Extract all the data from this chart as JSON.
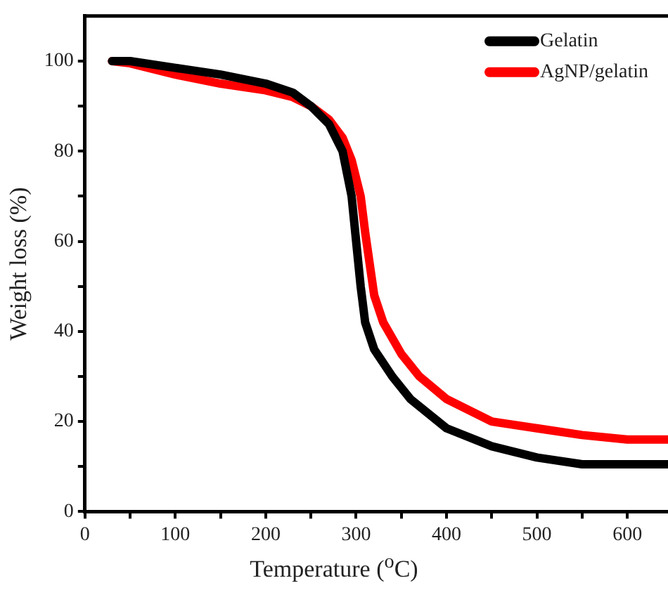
{
  "chart_data": {
    "type": "line",
    "xlabel": "Temperature ($^{o}$C)",
    "ylabel": "Weight loss (%)",
    "xlim": [
      0,
      645
    ],
    "xticks": [
      0,
      {
        "value": 50,
        "label": null
      },
      100,
      {
        "value": 150,
        "label": null
      },
      200,
      {
        "value": 250,
        "label": null
      },
      300,
      {
        "value": 350,
        "label": null
      },
      400,
      {
        "value": 450,
        "label": null
      },
      500,
      {
        "value": 550,
        "label": null
      },
      600
    ],
    "ylim": [
      0,
      110
    ],
    "yticks": [
      0,
      {
        "value": 10,
        "label": null
      },
      20,
      {
        "value": 30,
        "label": null
      },
      40,
      {
        "value": 50,
        "label": null
      },
      60,
      {
        "value": 70,
        "label": null
      },
      80,
      {
        "value": 90,
        "label": null
      },
      100
    ],
    "series": [
      {
        "name": "Gelatin",
        "color": "#000000",
        "x": [
          30,
          50,
          100,
          150,
          200,
          230,
          250,
          270,
          285,
          295,
          300,
          305,
          310,
          320,
          340,
          360,
          400,
          450,
          500,
          550,
          600,
          645
        ],
        "values": [
          100,
          100,
          98.5,
          97,
          95,
          93,
          90,
          86,
          80,
          70,
          60,
          50,
          42,
          36,
          30,
          25,
          18.5,
          14.5,
          12,
          10.5,
          10.5,
          10.5
        ]
      },
      {
        "name": "AgNP/gelatin",
        "color": "#ff0000",
        "x": [
          30,
          50,
          100,
          150,
          200,
          230,
          250,
          270,
          285,
          295,
          305,
          310,
          315,
          320,
          330,
          350,
          370,
          400,
          450,
          500,
          550,
          600,
          645
        ],
        "values": [
          100,
          99.5,
          97,
          95,
          93.5,
          92,
          90,
          87,
          83,
          78,
          70,
          62,
          55,
          48,
          42,
          35,
          30,
          25,
          20,
          18.5,
          17,
          16,
          16
        ]
      }
    ],
    "legend": "top right",
    "marker": "none",
    "line_style": "solid",
    "grid": false
  }
}
